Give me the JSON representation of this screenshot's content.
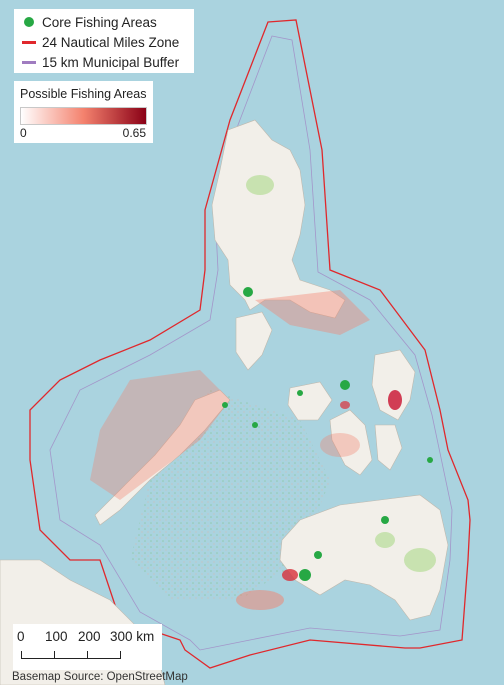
{
  "legend": {
    "items": [
      {
        "label": "Core Fishing Areas",
        "color": "#27a844",
        "symbol": "circle"
      },
      {
        "label": "24 Nautical Miles Zone",
        "color": "#e0282c",
        "symbol": "line"
      },
      {
        "label": "15 km Municipal Buffer",
        "color": "#a07cc0",
        "symbol": "line"
      }
    ]
  },
  "gradient_legend": {
    "title": "Possible Fishing Areas",
    "min": "0",
    "max": "0.65",
    "color_low": "#ffffff",
    "color_mid": "#f4826e",
    "color_high": "#8a0016"
  },
  "scalebar": {
    "labels": [
      "0",
      "100",
      "200",
      "300 km"
    ]
  },
  "credit": "Basemap Source: OpenStreetMap",
  "colors": {
    "sea": "#aad3df",
    "land": "#f2efe9",
    "park": "#c8e2b0"
  }
}
